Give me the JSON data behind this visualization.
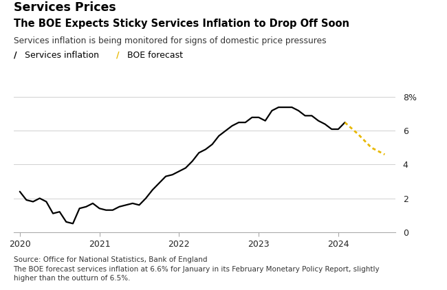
{
  "title_top": "Services Prices",
  "title_main": "The BOE Expects Sticky Services Inflation to Drop Off Soon",
  "subtitle": "Services inflation is being monitored for signs of domestic price pressures",
  "legend_items": [
    "Services inflation",
    "BOE forecast"
  ],
  "source_text": "Source: Office for National Statistics, Bank of England\nThe BOE forecast services inflation at 6.6% for January in its February Monetary Policy Report, slightly\nhigher than the outturn of 6.5%.",
  "ylim": [
    0,
    8
  ],
  "yticks": [
    0,
    2,
    4,
    6,
    8
  ],
  "ytick_labels": [
    "0",
    "2",
    "4",
    "6",
    "8%"
  ],
  "services_inflation": {
    "dates": [
      2020.0,
      2020.083,
      2020.167,
      2020.25,
      2020.333,
      2020.417,
      2020.5,
      2020.583,
      2020.667,
      2020.75,
      2020.833,
      2020.917,
      2021.0,
      2021.083,
      2021.167,
      2021.25,
      2021.333,
      2021.417,
      2021.5,
      2021.583,
      2021.667,
      2021.75,
      2021.833,
      2021.917,
      2022.0,
      2022.083,
      2022.167,
      2022.25,
      2022.333,
      2022.417,
      2022.5,
      2022.583,
      2022.667,
      2022.75,
      2022.833,
      2022.917,
      2023.0,
      2023.083,
      2023.167,
      2023.25,
      2023.333,
      2023.417,
      2023.5,
      2023.583,
      2023.667,
      2023.75,
      2023.833,
      2023.917,
      2024.0,
      2024.083
    ],
    "values": [
      2.4,
      1.9,
      1.8,
      2.0,
      1.8,
      1.1,
      1.2,
      0.6,
      0.5,
      1.4,
      1.5,
      1.7,
      1.4,
      1.3,
      1.3,
      1.5,
      1.6,
      1.7,
      1.6,
      2.0,
      2.5,
      2.9,
      3.3,
      3.4,
      3.6,
      3.8,
      4.2,
      4.7,
      4.9,
      5.2,
      5.7,
      6.0,
      6.3,
      6.5,
      6.5,
      6.8,
      6.8,
      6.6,
      7.2,
      7.4,
      7.4,
      7.4,
      7.2,
      6.9,
      6.9,
      6.6,
      6.4,
      6.1,
      6.1,
      6.5
    ],
    "color": "#000000",
    "linewidth": 1.6
  },
  "boe_forecast": {
    "dates": [
      2024.083,
      2024.25,
      2024.417,
      2024.583
    ],
    "values": [
      6.5,
      5.8,
      5.0,
      4.6
    ],
    "color": "#E8B800",
    "linewidth": 2.0
  },
  "background_color": "#ffffff",
  "grid_color": "#d0d0d0",
  "xlim": [
    2019.92,
    2024.72
  ],
  "xticks": [
    2020,
    2021,
    2022,
    2023,
    2024
  ],
  "xtick_labels": [
    "2020",
    "2021",
    "2022",
    "2023",
    "2024"
  ]
}
